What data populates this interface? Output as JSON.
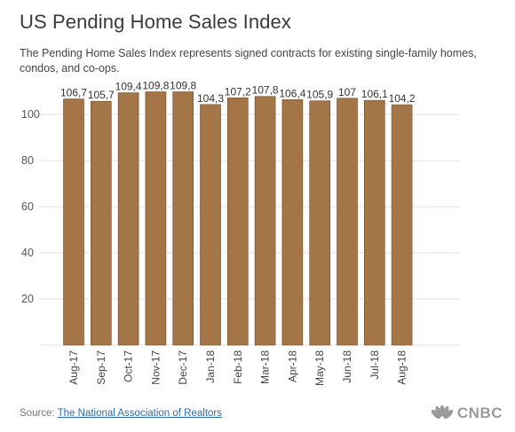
{
  "title": "US Pending Home Sales Index",
  "subtitle": "The Pending Home Sales Index represents signed contracts for existing single-family homes, condos, and co-ops.",
  "footer": {
    "source_prefix": "Source: ",
    "source_link": "The National Association of Realtors",
    "logo_text": "CNBC"
  },
  "chart_data": {
    "type": "bar",
    "categories": [
      "Aug-17",
      "Sep-17",
      "Oct-17",
      "Nov-17",
      "Dec-17",
      "Jan-18",
      "Feb-18",
      "Mar-18",
      "Apr-18",
      "May-18",
      "Jun-18",
      "Jul-18",
      "Aug-18"
    ],
    "values": [
      106.7,
      105.7,
      109.4,
      109.8,
      109.8,
      104.3,
      107.2,
      107.8,
      106.4,
      105.9,
      107,
      106.1,
      104.2
    ],
    "value_labels": [
      "106,7",
      "105,7",
      "109,4",
      "109,8",
      "109,8",
      "104,3",
      "107,2",
      "107,8",
      "106,4",
      "105,9",
      "107",
      "106,1",
      "104,2"
    ],
    "y_ticks": [
      20,
      40,
      60,
      80,
      100
    ],
    "ylim": [
      0,
      115
    ],
    "grid": true,
    "bar_color": "#a47546",
    "bar_stroke": "#6e4a26"
  }
}
